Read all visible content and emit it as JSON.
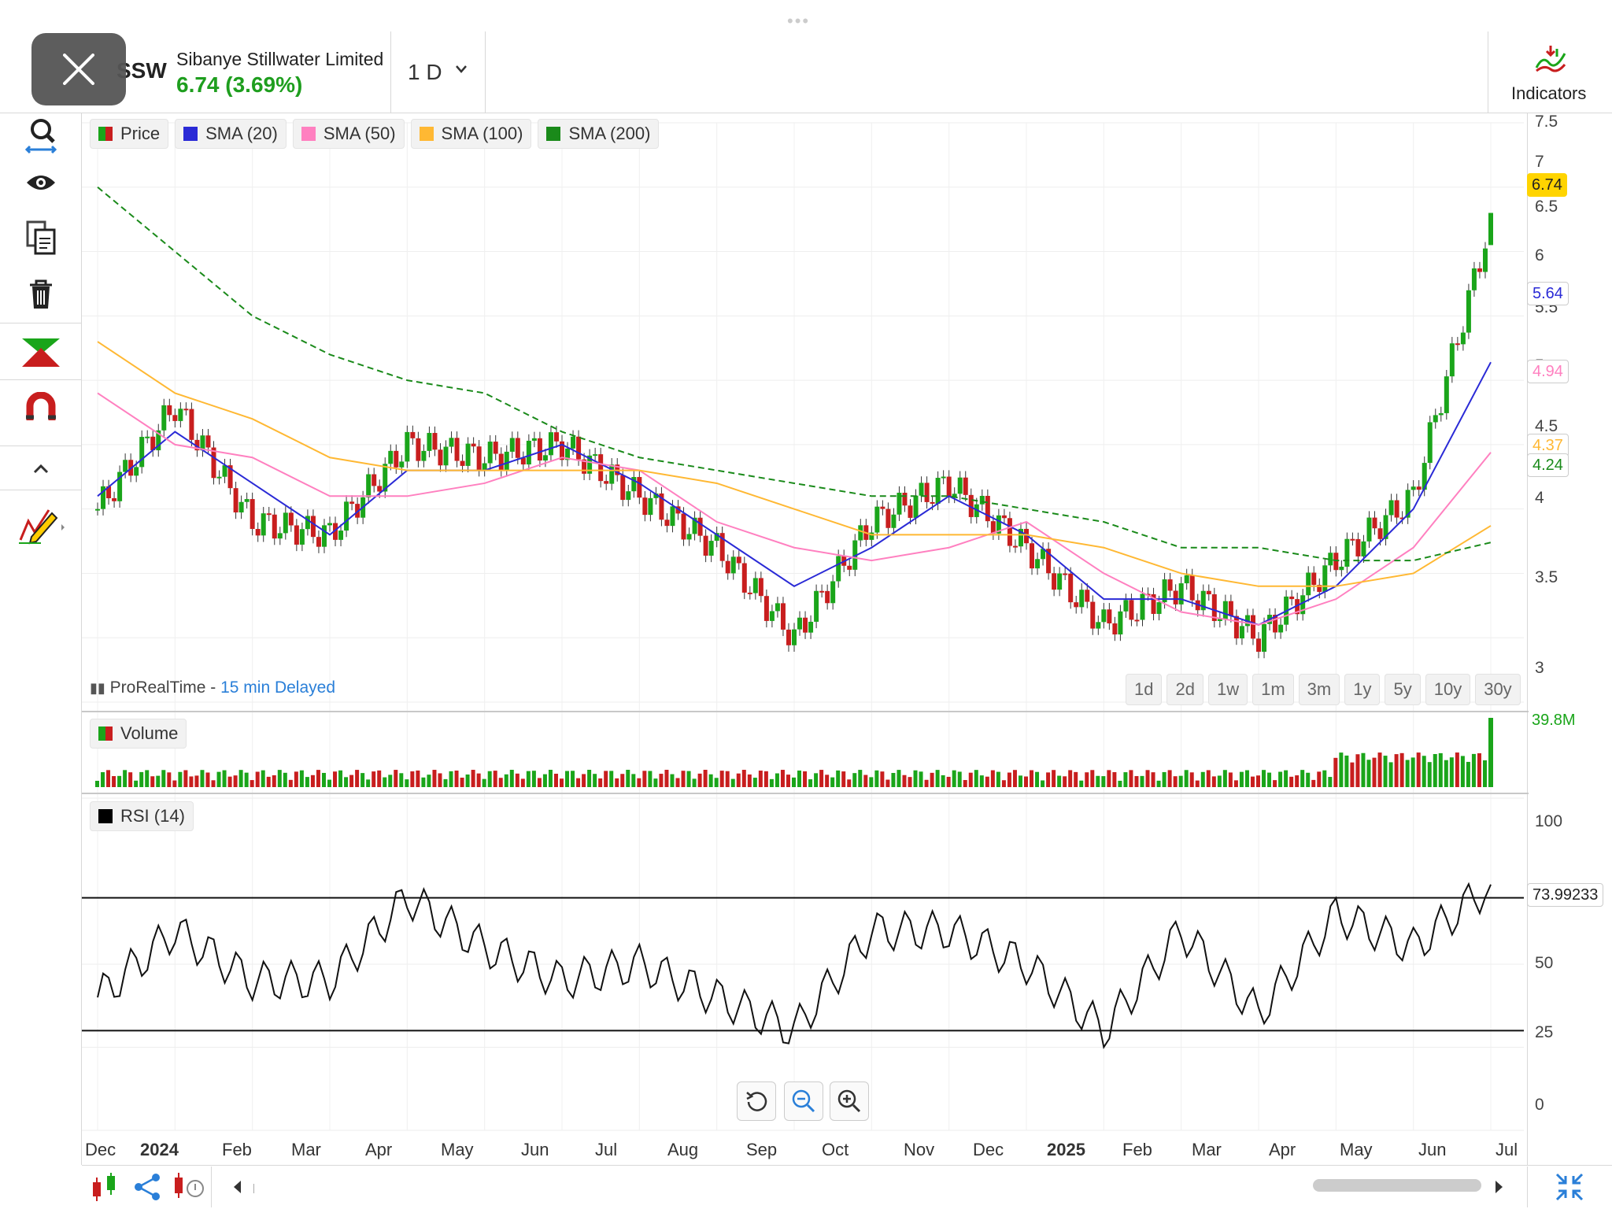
{
  "header": {
    "ticker": "SSW",
    "company": "Sibanye Stillwater Limited",
    "price_change": "6.74 (3.69%)",
    "interval": "1 D",
    "indicators_label": "Indicators"
  },
  "legend": {
    "price": "Price",
    "sma20": "SMA (20)",
    "sma50": "SMA (50)",
    "sma100": "SMA (100)",
    "sma200": "SMA (200)",
    "volume": "Volume",
    "rsi": "RSI (14)"
  },
  "source": {
    "provider": "ProRealTime -",
    "delay": "15 min Delayed"
  },
  "periods": [
    "1d",
    "2d",
    "1w",
    "1m",
    "3m",
    "1y",
    "5y",
    "10y",
    "30y"
  ],
  "price_axis": [
    "7.5",
    "7",
    "6.5",
    "6",
    "5.5",
    "5",
    "4.5",
    "4",
    "3.5",
    "3"
  ],
  "price_tags": {
    "last": "6.74",
    "sma20": "5.64",
    "sma50": "4.94",
    "sma100": "4.37",
    "sma200": "4.24",
    "volume": "39.8M",
    "rsi": "73.99233"
  },
  "rsi_axis": [
    "100",
    "50",
    "25",
    "0"
  ],
  "date_axis": [
    "Dec",
    "2024",
    "Feb",
    "Mar",
    "Apr",
    "May",
    "Jun",
    "Jul",
    "Aug",
    "Sep",
    "Oct",
    "Nov",
    "Dec",
    "2025",
    "Feb",
    "Mar",
    "Apr",
    "May",
    "Jun",
    "Jul"
  ],
  "colors": {
    "up": "#1aa51a",
    "down": "#c81e1e",
    "sma20": "#2a2ad6",
    "sma50": "#ff80c0",
    "sma100": "#ffb833",
    "sma200": "#1a8a1a",
    "last_tag": "#ffd400"
  },
  "chart_data": {
    "type": "line",
    "title": "Sibanye Stillwater Limited",
    "ylim": [
      3,
      7.5
    ],
    "x": [
      "Dec",
      "2024",
      "Feb",
      "Mar",
      "Apr",
      "May",
      "Jun",
      "Jul",
      "Aug",
      "Sep",
      "Oct",
      "Nov",
      "Dec",
      "2025",
      "Feb",
      "Mar",
      "Apr",
      "May",
      "Jun"
    ],
    "series": [
      {
        "name": "Price",
        "values": [
          4.5,
          5.3,
          4.4,
          4.3,
          5.0,
          4.9,
          5.0,
          4.6,
          4.2,
          3.5,
          4.4,
          4.7,
          4.2,
          3.6,
          3.9,
          3.5,
          4.1,
          4.6,
          6.74
        ]
      },
      {
        "name": "SMA (20)",
        "values": [
          4.6,
          5.1,
          4.7,
          4.3,
          4.8,
          4.8,
          5.0,
          4.7,
          4.3,
          3.9,
          4.2,
          4.6,
          4.3,
          3.8,
          3.8,
          3.6,
          3.9,
          4.5,
          5.64
        ]
      },
      {
        "name": "SMA (50)",
        "values": [
          5.4,
          5.0,
          4.9,
          4.6,
          4.6,
          4.7,
          4.9,
          4.8,
          4.4,
          4.2,
          4.1,
          4.2,
          4.4,
          4.0,
          3.7,
          3.6,
          3.8,
          4.2,
          4.94
        ]
      },
      {
        "name": "SMA (100)",
        "values": [
          5.8,
          5.4,
          5.2,
          4.9,
          4.8,
          4.8,
          4.8,
          4.8,
          4.7,
          4.5,
          4.3,
          4.3,
          4.3,
          4.2,
          4.0,
          3.9,
          3.9,
          4.0,
          4.37
        ]
      },
      {
        "name": "SMA (200)",
        "values": [
          7.0,
          6.5,
          6.0,
          5.7,
          5.5,
          5.4,
          5.1,
          4.9,
          4.8,
          4.7,
          4.6,
          4.6,
          4.5,
          4.4,
          4.2,
          4.2,
          4.1,
          4.1,
          4.24
        ]
      },
      {
        "name": "RSI (14)",
        "values": [
          40,
          60,
          45,
          45,
          70,
          55,
          45,
          50,
          40,
          30,
          60,
          60,
          50,
          30,
          60,
          35,
          65,
          55,
          73.99233
        ]
      }
    ]
  }
}
